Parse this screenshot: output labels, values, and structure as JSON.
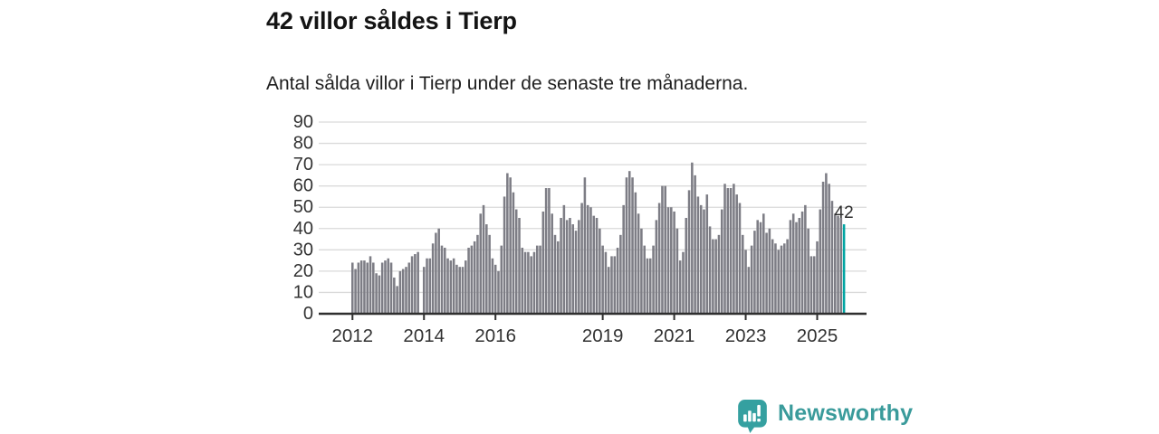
{
  "title": "42 villor såldes i Tierp",
  "subtitle": "Antal sålda villor i Tierp under de senaste tre månaderna.",
  "branding": {
    "logo_text": "Newsworthy",
    "logo_icon": "speech-bubble-bar-chart-icon",
    "logo_color": "#3a9b9b",
    "logo_icon_color": "#35a0a0"
  },
  "colors": {
    "bar": "#7d7d85",
    "highlight": "#00a4a2",
    "grid": "#dadada",
    "axis": "#2f2f2f",
    "tick_label": "#333333",
    "annotation": "#2e2e2e"
  },
  "chart_data": {
    "type": "bar",
    "title": "42 villor såldes i Tierp",
    "subtitle": "Antal sålda villor i Tierp under de senaste tre månaderna.",
    "xlabel": "",
    "ylabel": "",
    "frequency": "monthly",
    "x_start": "2012-01",
    "x_end": "2025-10",
    "ylim": [
      0,
      90
    ],
    "y_ticks": [
      0,
      10,
      20,
      30,
      40,
      50,
      60,
      70,
      80,
      90
    ],
    "x_tick_years": [
      2012,
      2014,
      2016,
      2019,
      2021,
      2023,
      2025
    ],
    "grid": true,
    "legend": "none",
    "annotation": {
      "text": "42",
      "target": "last-bar"
    },
    "highlight_last_bar": {
      "value": 42,
      "color": "#00a4a2"
    },
    "series": [
      {
        "name": "Antal sålda villor, rullande tre månader",
        "values": [
          24,
          21,
          24,
          25,
          25,
          24,
          27,
          24,
          19,
          18,
          24,
          25,
          26,
          24,
          17,
          13,
          20,
          21,
          22,
          24,
          27,
          28,
          29,
          0,
          22,
          26,
          26,
          33,
          38,
          40,
          32,
          31,
          26,
          25,
          26,
          23,
          22,
          22,
          25,
          31,
          32,
          34,
          37,
          47,
          51,
          42,
          37,
          26,
          23,
          20,
          32,
          55,
          66,
          64,
          57,
          49,
          45,
          31,
          29,
          29,
          27,
          29,
          32,
          32,
          48,
          59,
          59,
          47,
          37,
          34,
          45,
          51,
          44,
          45,
          42,
          39,
          44,
          52,
          64,
          51,
          50,
          46,
          45,
          40,
          32,
          29,
          22,
          27,
          27,
          31,
          37,
          51,
          64,
          67,
          64,
          57,
          47,
          40,
          32,
          26,
          26,
          32,
          44,
          52,
          60,
          60,
          50,
          50,
          48,
          40,
          25,
          29,
          45,
          58,
          71,
          65,
          55,
          51,
          49,
          56,
          41,
          35,
          35,
          37,
          49,
          61,
          59,
          59,
          61,
          56,
          52,
          37,
          30,
          22,
          32,
          39,
          44,
          43,
          47,
          38,
          40,
          35,
          33,
          30,
          32,
          33,
          35,
          44,
          47,
          43,
          45,
          48,
          51,
          40,
          27,
          27,
          34,
          49,
          62,
          66,
          61,
          53,
          47,
          46,
          45,
          42
        ]
      }
    ]
  }
}
